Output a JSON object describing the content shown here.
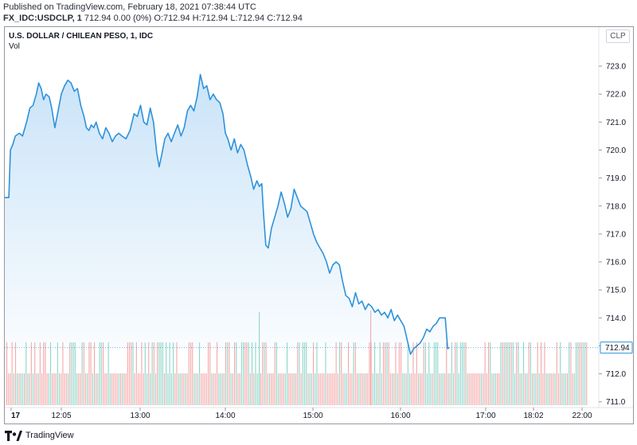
{
  "header": {
    "published": "Published on TradingView.com, February 18, 2021 07:38:44 UTC",
    "symbol": "FX_IDC:USDCLP, 1",
    "ohlc": "712.94 0.00 (0%) O:712.94 H:712.94 L:712.94 C:712.94"
  },
  "chart": {
    "title": "U.S. DOLLAR / CHILEAN PESO, 1, IDC",
    "volume_label": "Vol",
    "currency_badge": "CLP",
    "last_price_label": "712.94"
  },
  "footer": {
    "brand": "TradingView"
  },
  "colors": {
    "line": "#2e92da",
    "area_top": "#c7e2f8",
    "volume_up": "#8ed5c8",
    "volume_down": "#f4a7a7",
    "axis_text": "#131722"
  },
  "chart_data": {
    "type": "area",
    "title": "U.S. DOLLAR / CHILEAN PESO, 1, IDC",
    "xlabel": "",
    "ylabel": "",
    "x_ticks": [
      {
        "label": "17",
        "hour": 11.0
      },
      {
        "label": "12:05",
        "hour": 12.0833
      },
      {
        "label": "13:00",
        "hour": 13.0
      },
      {
        "label": "14:00",
        "hour": 14.0
      },
      {
        "label": "15:00",
        "hour": 15.0
      },
      {
        "label": "16:00",
        "hour": 16.0
      },
      {
        "label": "17:00",
        "hour": 17.0
      },
      {
        "label": "18:02",
        "hour": 17.7
      },
      {
        "label": "22:00",
        "hour": 18.3
      }
    ],
    "y_ticks": [
      711.0,
      712.0,
      713.0,
      714.0,
      715.0,
      716.0,
      717.0,
      718.0,
      719.0,
      720.0,
      721.0,
      722.0,
      723.0
    ],
    "ylim": [
      710.85,
      723.6
    ],
    "xlim": [
      11.0,
      18.35
    ],
    "series": [
      {
        "name": "USDCLP",
        "points": [
          [
            11.0,
            718.3
          ],
          [
            11.05,
            718.3
          ],
          [
            11.07,
            720.0
          ],
          [
            11.1,
            720.2
          ],
          [
            11.13,
            720.5
          ],
          [
            11.18,
            720.6
          ],
          [
            11.22,
            720.5
          ],
          [
            11.27,
            721.0
          ],
          [
            11.31,
            721.5
          ],
          [
            11.35,
            721.6
          ],
          [
            11.39,
            722.0
          ],
          [
            11.42,
            722.4
          ],
          [
            11.45,
            722.2
          ],
          [
            11.48,
            721.8
          ],
          [
            11.51,
            722.0
          ],
          [
            11.55,
            721.9
          ],
          [
            11.58,
            721.5
          ],
          [
            11.62,
            720.8
          ],
          [
            11.66,
            721.4
          ],
          [
            11.7,
            722.0
          ],
          [
            11.74,
            722.3
          ],
          [
            11.78,
            722.5
          ],
          [
            11.82,
            722.4
          ],
          [
            11.86,
            722.1
          ],
          [
            11.9,
            722.2
          ],
          [
            11.94,
            721.6
          ],
          [
            11.98,
            721.2
          ],
          [
            12.01,
            720.8
          ],
          [
            12.04,
            720.7
          ],
          [
            12.07,
            720.9
          ],
          [
            12.1,
            720.8
          ],
          [
            12.13,
            721.0
          ],
          [
            12.17,
            720.6
          ],
          [
            12.21,
            720.4
          ],
          [
            12.25,
            720.8
          ],
          [
            12.29,
            720.6
          ],
          [
            12.33,
            720.3
          ],
          [
            12.37,
            720.5
          ],
          [
            12.41,
            720.6
          ],
          [
            12.45,
            720.5
          ],
          [
            12.5,
            720.4
          ],
          [
            12.55,
            720.7
          ],
          [
            12.6,
            721.3
          ],
          [
            12.64,
            721.2
          ],
          [
            12.68,
            721.6
          ],
          [
            12.72,
            721.0
          ],
          [
            12.76,
            720.9
          ],
          [
            12.8,
            721.5
          ],
          [
            12.84,
            721.0
          ],
          [
            12.88,
            719.9
          ],
          [
            12.91,
            719.4
          ],
          [
            12.94,
            719.8
          ],
          [
            12.98,
            720.4
          ],
          [
            13.02,
            720.6
          ],
          [
            13.06,
            720.3
          ],
          [
            13.1,
            720.6
          ],
          [
            13.14,
            720.9
          ],
          [
            13.18,
            720.5
          ],
          [
            13.22,
            720.8
          ],
          [
            13.26,
            721.4
          ],
          [
            13.3,
            721.6
          ],
          [
            13.34,
            721.4
          ],
          [
            13.38,
            721.9
          ],
          [
            13.42,
            722.7
          ],
          [
            13.46,
            722.2
          ],
          [
            13.5,
            722.3
          ],
          [
            13.54,
            721.8
          ],
          [
            13.58,
            722.0
          ],
          [
            13.62,
            721.8
          ],
          [
            13.66,
            721.7
          ],
          [
            13.7,
            721.3
          ],
          [
            13.73,
            720.6
          ],
          [
            13.76,
            720.4
          ],
          [
            13.8,
            720.0
          ],
          [
            13.84,
            720.4
          ],
          [
            13.88,
            719.9
          ],
          [
            13.92,
            720.2
          ],
          [
            13.96,
            720.0
          ],
          [
            14.0,
            719.5
          ],
          [
            14.04,
            719.1
          ],
          [
            14.08,
            718.6
          ],
          [
            14.12,
            718.9
          ],
          [
            14.15,
            718.7
          ],
          [
            14.18,
            718.8
          ],
          [
            14.2,
            717.8
          ],
          [
            14.23,
            716.6
          ],
          [
            14.26,
            716.5
          ],
          [
            14.3,
            717.2
          ],
          [
            14.34,
            717.6
          ],
          [
            14.38,
            718.0
          ],
          [
            14.42,
            718.5
          ],
          [
            14.46,
            718.1
          ],
          [
            14.5,
            717.6
          ],
          [
            14.54,
            717.9
          ],
          [
            14.58,
            718.6
          ],
          [
            14.62,
            718.3
          ],
          [
            14.66,
            718.0
          ],
          [
            14.7,
            717.9
          ],
          [
            14.74,
            717.8
          ],
          [
            14.78,
            717.4
          ],
          [
            14.82,
            717.0
          ],
          [
            14.86,
            716.7
          ],
          [
            14.9,
            716.5
          ],
          [
            14.94,
            716.3
          ],
          [
            14.98,
            716.0
          ],
          [
            15.02,
            715.6
          ],
          [
            15.06,
            715.9
          ],
          [
            15.1,
            716.0
          ],
          [
            15.14,
            715.9
          ],
          [
            15.18,
            715.3
          ],
          [
            15.22,
            714.8
          ],
          [
            15.26,
            714.7
          ],
          [
            15.3,
            714.4
          ],
          [
            15.34,
            714.9
          ],
          [
            15.38,
            714.5
          ],
          [
            15.42,
            714.6
          ],
          [
            15.46,
            714.3
          ],
          [
            15.5,
            714.5
          ],
          [
            15.54,
            714.4
          ],
          [
            15.58,
            714.2
          ],
          [
            15.62,
            714.3
          ],
          [
            15.66,
            714.1
          ],
          [
            15.7,
            714.2
          ],
          [
            15.74,
            714.0
          ],
          [
            15.78,
            714.3
          ],
          [
            15.82,
            713.9
          ],
          [
            15.86,
            714.1
          ],
          [
            15.9,
            713.9
          ],
          [
            15.94,
            713.7
          ],
          [
            15.98,
            713.2
          ],
          [
            16.02,
            712.7
          ],
          [
            16.06,
            712.9
          ],
          [
            16.1,
            713.0
          ],
          [
            16.14,
            713.1
          ],
          [
            16.18,
            713.3
          ],
          [
            16.22,
            713.6
          ],
          [
            16.26,
            713.5
          ],
          [
            16.3,
            713.7
          ],
          [
            16.34,
            713.8
          ],
          [
            16.38,
            714.0
          ],
          [
            16.42,
            714.0
          ],
          [
            16.45,
            714.0
          ],
          [
            16.48,
            712.9
          ],
          [
            16.5,
            712.94
          ]
        ]
      }
    ]
  }
}
